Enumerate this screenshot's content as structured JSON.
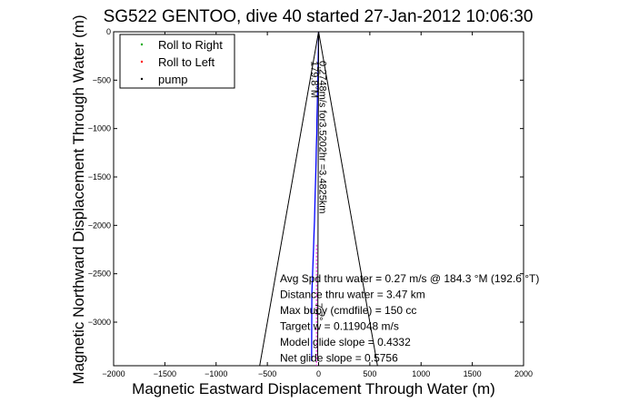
{
  "chart_data": {
    "type": "line",
    "title": "SG522 GENTOO, dive 40 started 27-Jan-2012 10:06:30",
    "xlabel": "Magnetic Eastward Displacement Through Water (m)",
    "ylabel": "Magnetic Northward Displacement Through Water (m)",
    "xlim": [
      -2000,
      2000
    ],
    "ylim": [
      -3450,
      0
    ],
    "x_ticks": [
      -2000,
      -1500,
      -1000,
      -500,
      0,
      500,
      1000,
      1500,
      2000
    ],
    "x_tick_labels": [
      "−2000",
      "−1500",
      "−1000",
      "−500",
      "0",
      "500",
      "1000",
      "1500",
      "2000"
    ],
    "y_ticks": [
      0,
      -500,
      -1000,
      -1500,
      -2000,
      -2500,
      -3000
    ],
    "y_tick_labels": [
      "0",
      "−500",
      "−1000",
      "−1500",
      "−2000",
      "−2500",
      "−3000"
    ],
    "grid": false,
    "legend_position": "top-left",
    "legend": [
      {
        "label": "Roll to Right",
        "color": "#00aa00"
      },
      {
        "label": "Roll to Left",
        "color": "#ff0000"
      },
      {
        "label": "pump",
        "color": "#000000"
      }
    ],
    "series": [
      {
        "style": "track",
        "color": "#0000ff",
        "x": [
          0,
          -2,
          -4,
          -6,
          -10,
          -12,
          -16,
          -18,
          -22,
          -25,
          -28,
          -33,
          -36,
          -40,
          -45,
          -50,
          -55,
          -60,
          -66,
          -68
        ],
        "y": [
          0,
          -150,
          -300,
          -450,
          -600,
          -750,
          -900,
          -1050,
          -1200,
          -1350,
          -1500,
          -1650,
          -1800,
          -1950,
          -2100,
          -2250,
          -2400,
          -2550,
          -2700,
          -3400
        ]
      },
      {
        "style": "heading",
        "color": "#000000",
        "x": [
          0,
          -9
        ],
        "y": [
          0,
          -3400
        ]
      },
      {
        "style": "cone-left",
        "color": "#000000",
        "x": [
          0,
          -575
        ],
        "y": [
          0,
          -3450
        ]
      },
      {
        "style": "cone-right",
        "color": "#000000",
        "x": [
          0,
          575
        ],
        "y": [
          0,
          -3450
        ]
      },
      {
        "style": "pump",
        "color": "#ff00ff",
        "x": [
          -20,
          -20
        ],
        "y": [
          -2200,
          -3450
        ]
      }
    ],
    "rotated_annotations": [
      {
        "text": "0.2748m/s for3.5202hr =3.4825km",
        "x": 10,
        "y": -300,
        "angle": 90
      },
      {
        "text": "179.8°M",
        "x": -70,
        "y": -300,
        "angle": 90
      },
      {
        "text": "7.7°",
        "x": -30,
        "y": -2800,
        "angle": 90
      }
    ],
    "annotations": [
      "Avg Spd thru water =  0.27 m/s @ 184.3  °M (192.6 °T)",
      "Distance thru water =  3.47 km",
      "Max buoy (cmdfile) = 150 cc",
      "Target w = 0.119048 m/s",
      "Model glide slope = 0.4332",
      "Net glide slope = 0.5756"
    ]
  }
}
